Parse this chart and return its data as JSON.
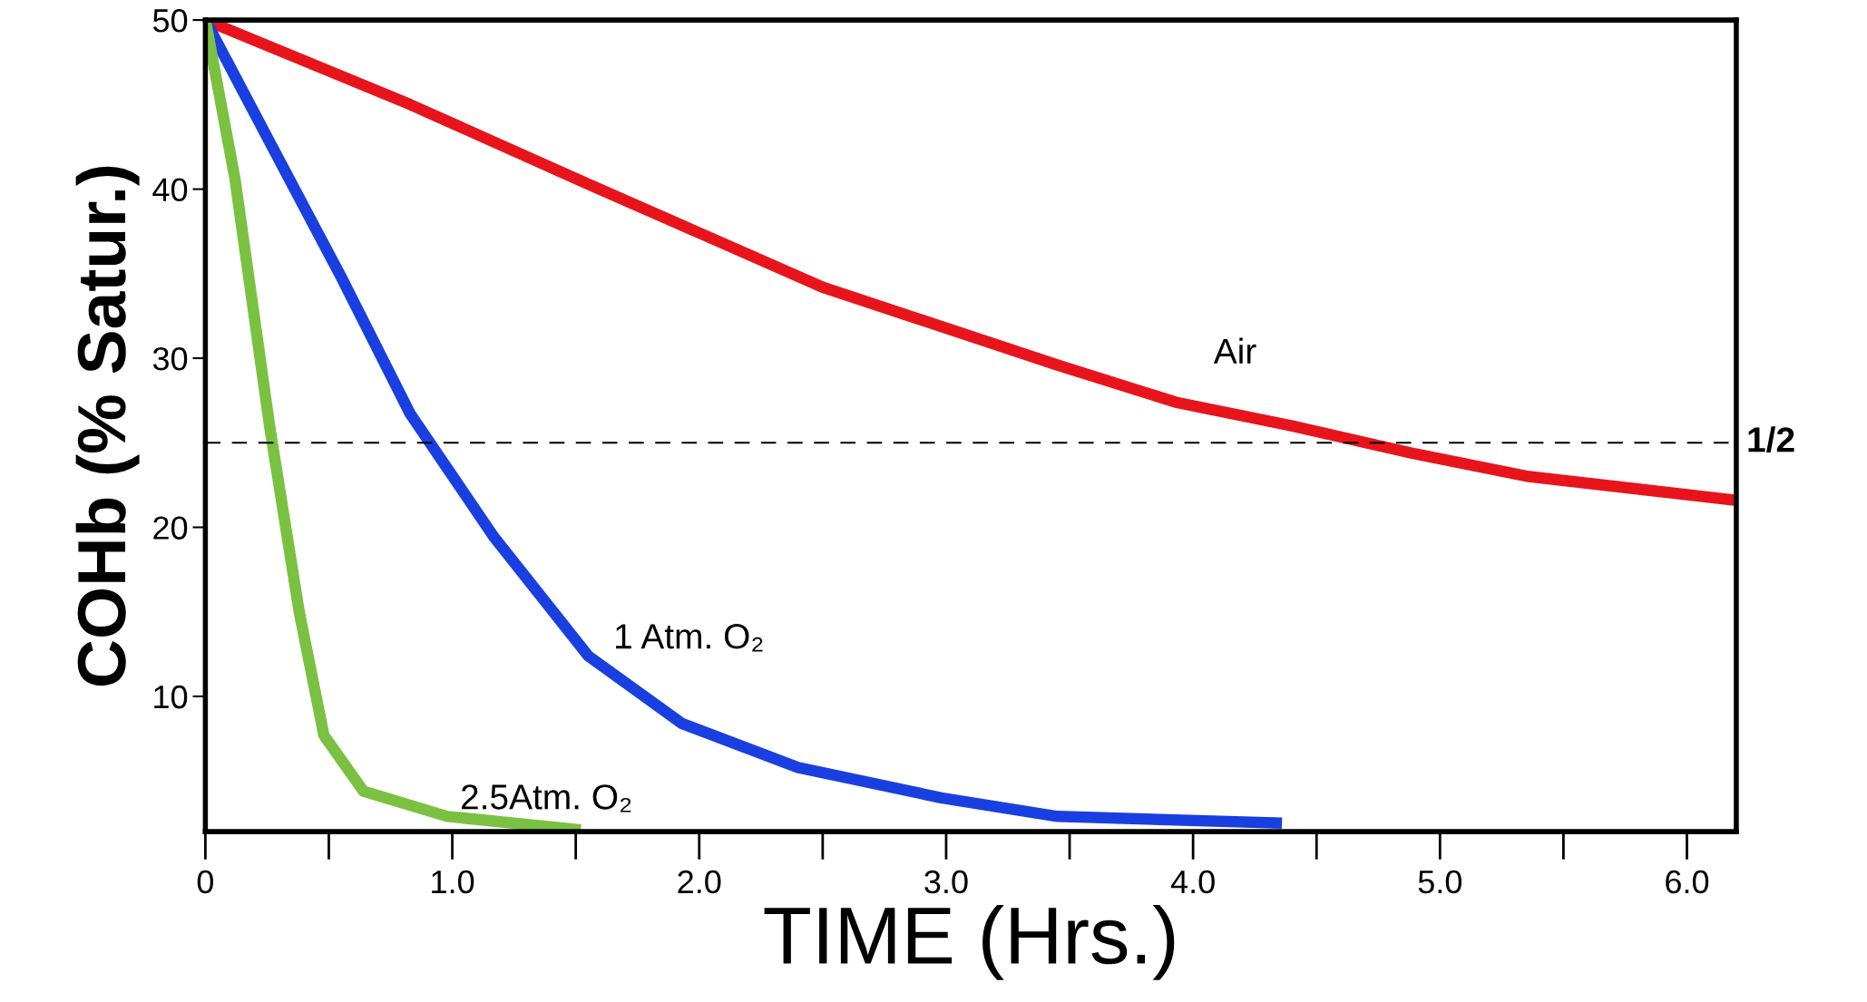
{
  "chart_data": {
    "type": "line",
    "xlabel": "TIME (Hrs.)",
    "ylabel": "COHb (% Satur.)",
    "xlim": [
      0,
      6.2
    ],
    "ylim": [
      2,
      50
    ],
    "xticks": [
      0,
      "1.0",
      {
        "value": 2,
        "label": "2.0"
      },
      {
        "value": 3,
        "label": "3.0"
      },
      {
        "value": 4,
        "label": "4.0"
      },
      {
        "value": 5,
        "label": "5.0"
      },
      {
        "value": 6,
        "label": "6.0"
      }
    ],
    "yticks": [
      10,
      20,
      30,
      40,
      50
    ],
    "grid": false,
    "legend": false,
    "series": [
      {
        "name": "Air",
        "color": "#e8141c",
        "x": [
          0,
          0.83,
          1.55,
          2.5,
          3.45,
          3.93,
          4.4,
          4.88,
          5.36,
          6.2
        ],
        "values": [
          50,
          45.0,
          40.3,
          34.2,
          29.6,
          27.4,
          26.0,
          24.4,
          23.0,
          21.6
        ]
      },
      {
        "name": "1 Atm. O₂",
        "color": "#1a3fe0",
        "x": [
          0,
          0.26,
          0.55,
          0.83,
          1.17,
          1.55,
          1.93,
          2.4,
          2.98,
          3.45,
          4.36
        ],
        "values": [
          50,
          42.8,
          34.8,
          26.7,
          19.4,
          12.4,
          8.4,
          5.8,
          4.0,
          2.9,
          2.5
        ]
      },
      {
        "name": "2.5Atm. O₂",
        "color": "#7ac142",
        "x": [
          0,
          0.12,
          0.26,
          0.38,
          0.48,
          0.64,
          0.98,
          1.52
        ],
        "values": [
          50,
          40.6,
          26.0,
          15.0,
          7.7,
          4.4,
          2.9,
          2.1
        ]
      }
    ],
    "ref_lines": [
      {
        "axis": "y",
        "value": 25,
        "color": "#000000",
        "line_style": "dashed"
      }
    ],
    "annotations": [
      "1/2"
    ]
  }
}
